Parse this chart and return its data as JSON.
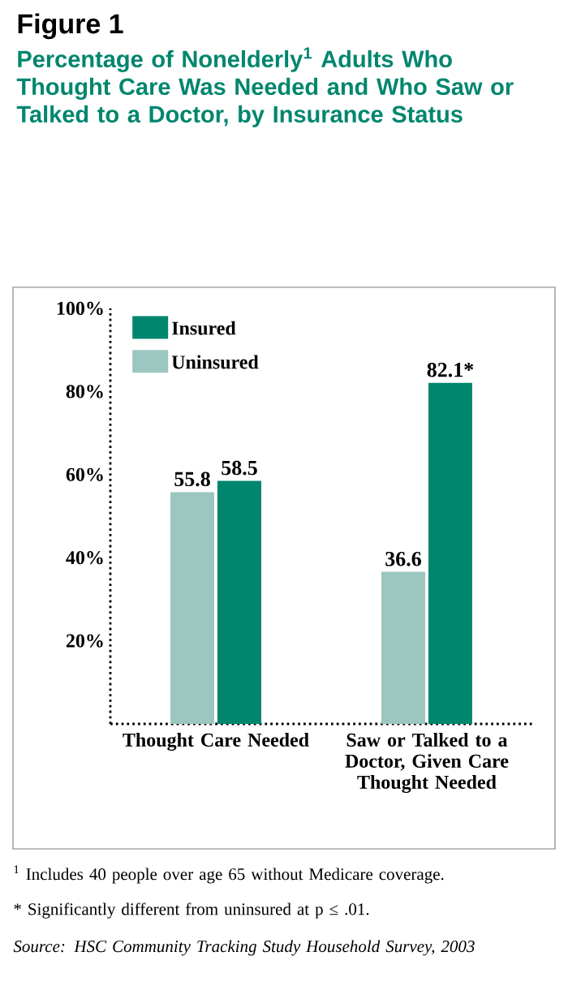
{
  "chart_data": {
    "type": "bar",
    "title": "Figure 1",
    "subtitle": "Percentage of Nonelderly$^{1}$ Adults Who Thought Care Was Needed and Who Saw or Talked to a Doctor, by Insurance Status",
    "categories": [
      "Thought Care Needed",
      "Saw or Talked to a Doctor, Given Care Thought Needed"
    ],
    "series": [
      {
        "name": "Uninsured",
        "color": "#9cc6c0",
        "values": [
          55.8,
          36.6
        ],
        "value_labels": [
          "55.8",
          "36.6"
        ]
      },
      {
        "name": "Insured",
        "color": "#00866e",
        "values": [
          58.5,
          82.1
        ],
        "value_labels": [
          "58.5",
          "82.1*"
        ]
      }
    ],
    "ylim": [
      0,
      100
    ],
    "yticks": [
      {
        "value": 20,
        "label": "20%"
      },
      {
        "value": 40,
        "label": "40%"
      },
      {
        "value": 60,
        "label": "60%"
      },
      {
        "value": 80,
        "label": "80%"
      },
      {
        "value": 100,
        "label": "100%"
      }
    ],
    "legend": "top left",
    "annotations": [
      "$^{1}$ Includes 40 people over age 65 without Medicare coverage.",
      "* Significantly different from uninsured at p ≤ .01.",
      "*Source: HSC Community Tracking Study Household Survey, 2003*"
    ]
  }
}
